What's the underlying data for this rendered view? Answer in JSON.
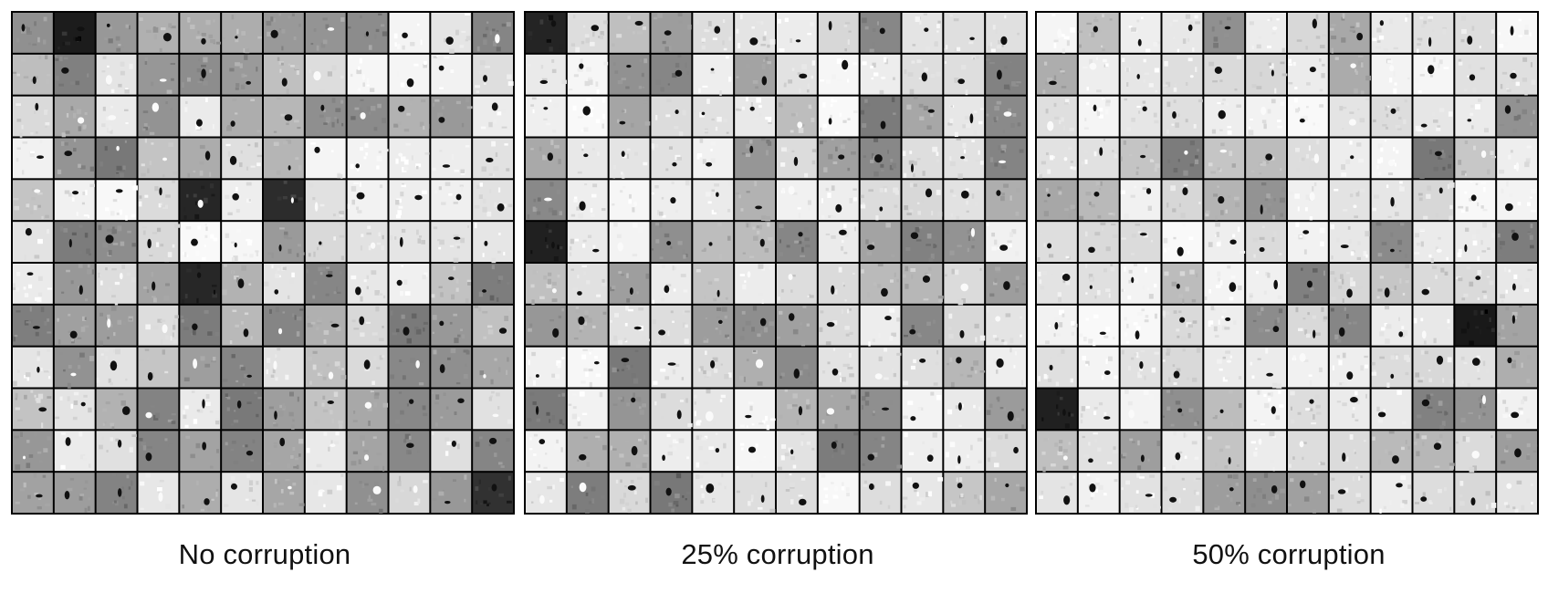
{
  "panels": [
    {
      "caption": "No corruption",
      "corruption_level": 0.0,
      "grid_rows": 12,
      "grid_cols": 12
    },
    {
      "caption": "25% corruption",
      "corruption_level": 0.25,
      "grid_rows": 12,
      "grid_cols": 12
    },
    {
      "caption": "50% corruption",
      "corruption_level": 0.5,
      "grid_rows": 12,
      "grid_cols": 12
    }
  ],
  "colors": {
    "grid_line": "#000000",
    "background": "#ffffff"
  }
}
